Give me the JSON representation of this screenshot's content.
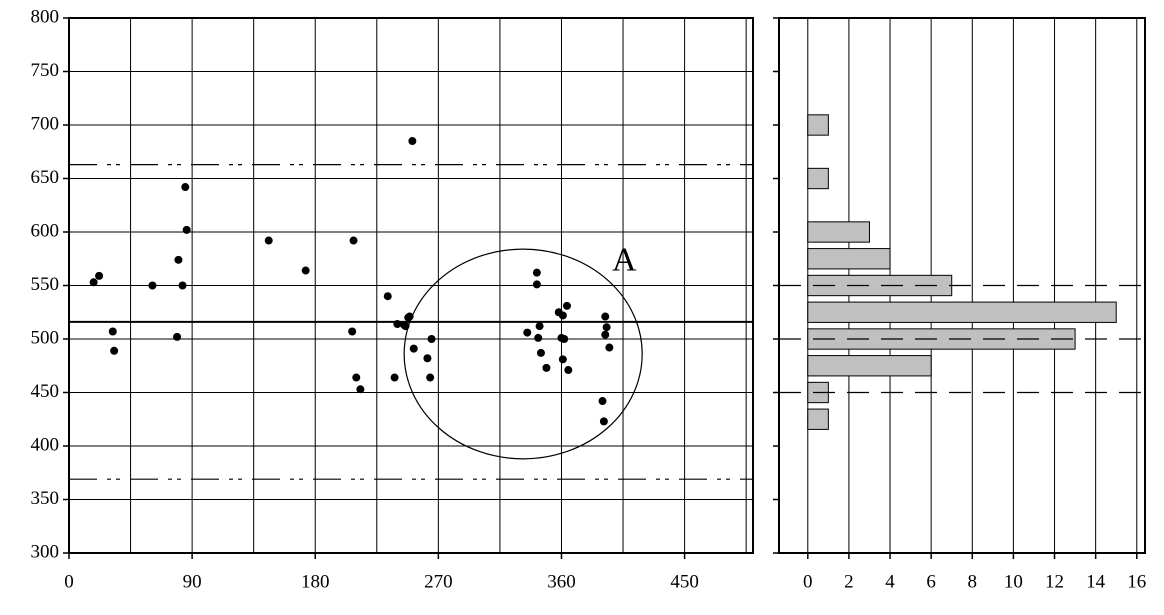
{
  "chart_data": [
    {
      "type": "scatter",
      "x": [
        18,
        22,
        32,
        33,
        61,
        80,
        79,
        83,
        85,
        86,
        146,
        173,
        208,
        207,
        210,
        213,
        233,
        238,
        240,
        245,
        248,
        249,
        246,
        251,
        252,
        262,
        265,
        264,
        335,
        342,
        342,
        344,
        343,
        345,
        349,
        358,
        361,
        360,
        362,
        361,
        365,
        364,
        390,
        392,
        391,
        393,
        392,
        395
      ],
      "y": [
        553,
        559,
        507,
        489,
        550,
        574,
        502,
        550,
        642,
        602,
        592,
        564,
        592,
        507,
        464,
        453,
        540,
        464,
        514,
        513,
        520,
        521,
        512,
        685,
        491,
        482,
        500,
        464,
        506,
        562,
        551,
        512,
        501,
        487,
        473,
        525,
        522,
        501,
        500,
        481,
        471,
        531,
        442,
        521,
        423,
        511,
        504,
        492
      ],
      "color": "#000000",
      "xlim": [
        0,
        500
      ],
      "xticks": [
        0,
        90,
        180,
        270,
        360,
        450
      ],
      "xminor": [
        45,
        135,
        225,
        315,
        405,
        495
      ],
      "ylim": [
        300,
        800
      ],
      "yticks": [
        300,
        350,
        400,
        450,
        500,
        550,
        600,
        650,
        700,
        750,
        800
      ],
      "grid": true,
      "lines": [
        {
          "value": 516,
          "style": "solid"
        },
        {
          "value": 663,
          "style": "dash-dot-dot"
        },
        {
          "value": 369,
          "style": "dash-dot-dot"
        }
      ],
      "ellipse": {
        "cx": 332,
        "cy": 486,
        "rx": 87,
        "ry": 98,
        "label": "A"
      }
    },
    {
      "type": "barh",
      "y": [
        700,
        650,
        600,
        575,
        550,
        525,
        500,
        475,
        450,
        425
      ],
      "values": [
        1,
        1,
        3,
        4,
        7,
        15,
        13,
        6,
        1,
        1
      ],
      "color": "#c0c0c0",
      "xlim": [
        -1.4,
        16.4
      ],
      "xticks": [
        0,
        2,
        4,
        6,
        8,
        10,
        12,
        14,
        16
      ],
      "ylim": [
        300,
        800
      ],
      "yticks": [
        300,
        350,
        400,
        450,
        500,
        550,
        600,
        650,
        700,
        750,
        800
      ],
      "grid": true,
      "lines": [
        {
          "value": 550,
          "style": "dashed"
        },
        {
          "value": 500,
          "style": "dashed"
        },
        {
          "value": 450,
          "style": "dashed"
        }
      ]
    }
  ]
}
